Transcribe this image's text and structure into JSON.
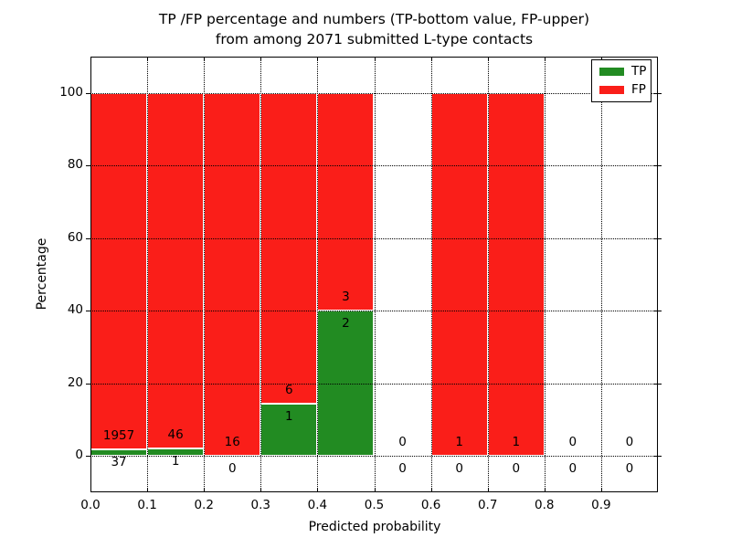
{
  "figure_title": {
    "line1": "TP /FP percentage and numbers (TP-bottom value, FP-upper)",
    "line2": "from among 2071 submitted L-type contacts"
  },
  "axes": {
    "xlabel": "Predicted probability",
    "ylabel": "Percentage"
  },
  "legend": {
    "position": "upper right",
    "items": [
      {
        "label": "TP",
        "color": "#228b22"
      },
      {
        "label": "FP",
        "color": "#fa1e19"
      }
    ]
  },
  "chart_data": {
    "type": "bar",
    "stacked": true,
    "title": "TP /FP percentage and numbers (TP-bottom value, FP-upper) from among 2071 submitted L-type contacts",
    "xlabel": "Predicted probability",
    "ylabel": "Percentage",
    "xlim": [
      0.0,
      1.0
    ],
    "ylim": [
      -10,
      110
    ],
    "xtick_labels": [
      "0.0",
      "0.1",
      "0.2",
      "0.3",
      "0.4",
      "0.5",
      "0.6",
      "0.7",
      "0.8",
      "0.9"
    ],
    "ytick_values": [
      0,
      20,
      40,
      60,
      80,
      100
    ],
    "grid": "dotted",
    "legend_position": "upper right",
    "total_submitted": 2071,
    "series": [
      {
        "name": "TP",
        "color": "#228b22"
      },
      {
        "name": "FP",
        "color": "#fa1e19"
      }
    ],
    "bins": [
      {
        "x_range": [
          0.0,
          0.1
        ],
        "tp_count": 37,
        "fp_count": 1957,
        "tp_percent": 1.86,
        "bar_top_percent": 100
      },
      {
        "x_range": [
          0.1,
          0.2
        ],
        "tp_count": 1,
        "fp_count": 46,
        "tp_percent": 2.13,
        "bar_top_percent": 100
      },
      {
        "x_range": [
          0.2,
          0.3
        ],
        "tp_count": 0,
        "fp_count": 16,
        "tp_percent": 0,
        "bar_top_percent": 100
      },
      {
        "x_range": [
          0.3,
          0.4
        ],
        "tp_count": 1,
        "fp_count": 6,
        "tp_percent": 14.29,
        "bar_top_percent": 100
      },
      {
        "x_range": [
          0.4,
          0.5
        ],
        "tp_count": 2,
        "fp_count": 3,
        "tp_percent": 40,
        "bar_top_percent": 100
      },
      {
        "x_range": [
          0.5,
          0.6
        ],
        "tp_count": 0,
        "fp_count": 0,
        "tp_percent": 0,
        "bar_top_percent": 0
      },
      {
        "x_range": [
          0.6,
          0.7
        ],
        "tp_count": 0,
        "fp_count": 1,
        "tp_percent": 0,
        "bar_top_percent": 100
      },
      {
        "x_range": [
          0.7,
          0.8
        ],
        "tp_count": 0,
        "fp_count": 1,
        "tp_percent": 0,
        "bar_top_percent": 100
      },
      {
        "x_range": [
          0.8,
          0.9
        ],
        "tp_count": 0,
        "fp_count": 0,
        "tp_percent": 0,
        "bar_top_percent": 0
      },
      {
        "x_range": [
          0.9,
          1.0
        ],
        "tp_count": 0,
        "fp_count": 0,
        "tp_percent": 0,
        "bar_top_percent": 0
      }
    ]
  }
}
